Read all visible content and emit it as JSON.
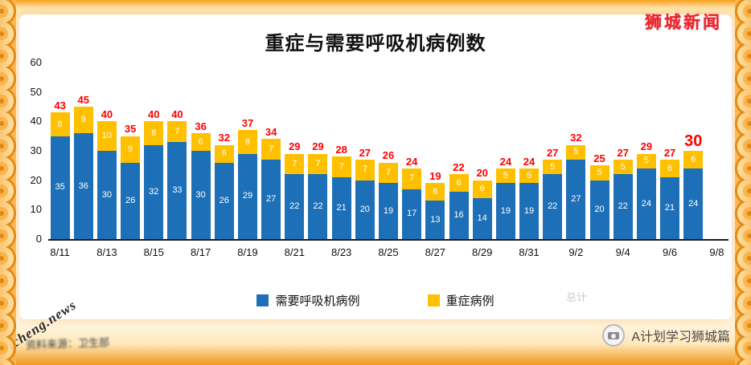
{
  "page": {
    "brand": "狮城新闻",
    "watermark": "shicheng.news",
    "footnote": "资料来源：卫生部",
    "faint_label": "总计",
    "account": "A计划学习狮城篇"
  },
  "legend": {
    "ventilator": "需要呼吸机病例",
    "severe": "重症病例"
  },
  "colors": {
    "ventilator_blue": "#1d70b8",
    "severe_gold": "#ffc000",
    "total_red": "#ff0000",
    "brand_red": "#e8262d",
    "border_orange": "#f6a01d"
  },
  "chart_data": {
    "type": "bar",
    "stacked": true,
    "title": "重症与需要呼吸机病例数",
    "x": [
      "8/11",
      "8/12",
      "8/13",
      "8/14",
      "8/15",
      "8/16",
      "8/17",
      "8/18",
      "8/19",
      "8/20",
      "8/21",
      "8/22",
      "8/23",
      "8/24",
      "8/25",
      "8/26",
      "8/27",
      "8/28",
      "8/29",
      "8/30",
      "8/31",
      "9/1",
      "9/2",
      "9/3",
      "9/4",
      "9/5",
      "9/6",
      "9/7"
    ],
    "x_tick_labels": [
      "8/11",
      "8/13",
      "8/15",
      "8/17",
      "8/19",
      "8/21",
      "8/23",
      "8/25",
      "8/27",
      "8/29",
      "8/31",
      "9/2",
      "9/4",
      "9/6",
      "9/8"
    ],
    "series": [
      {
        "name": "需要呼吸机病例",
        "color": "#1d70b8",
        "values": [
          35,
          36,
          30,
          26,
          32,
          33,
          30,
          26,
          29,
          27,
          22,
          22,
          21,
          20,
          19,
          17,
          13,
          16,
          14,
          19,
          19,
          22,
          27,
          20,
          22,
          24,
          21,
          24
        ]
      },
      {
        "name": "重症病例",
        "color": "#ffc000",
        "values": [
          8,
          9,
          10,
          9,
          8,
          7,
          6,
          6,
          8,
          7,
          7,
          7,
          7,
          7,
          7,
          7,
          6,
          6,
          6,
          5,
          5,
          5,
          5,
          5,
          5,
          5,
          6,
          6
        ]
      }
    ],
    "totals": [
      43,
      45,
      40,
      35,
      40,
      40,
      36,
      32,
      37,
      34,
      29,
      29,
      28,
      27,
      26,
      24,
      19,
      22,
      20,
      24,
      24,
      27,
      32,
      25,
      27,
      29,
      27,
      30
    ],
    "ylim": [
      0,
      60
    ],
    "yticks": [
      0,
      10,
      20,
      30,
      40,
      50,
      60
    ],
    "xlabel": "",
    "ylabel": "",
    "grid": false,
    "legend_position": "bottom"
  }
}
